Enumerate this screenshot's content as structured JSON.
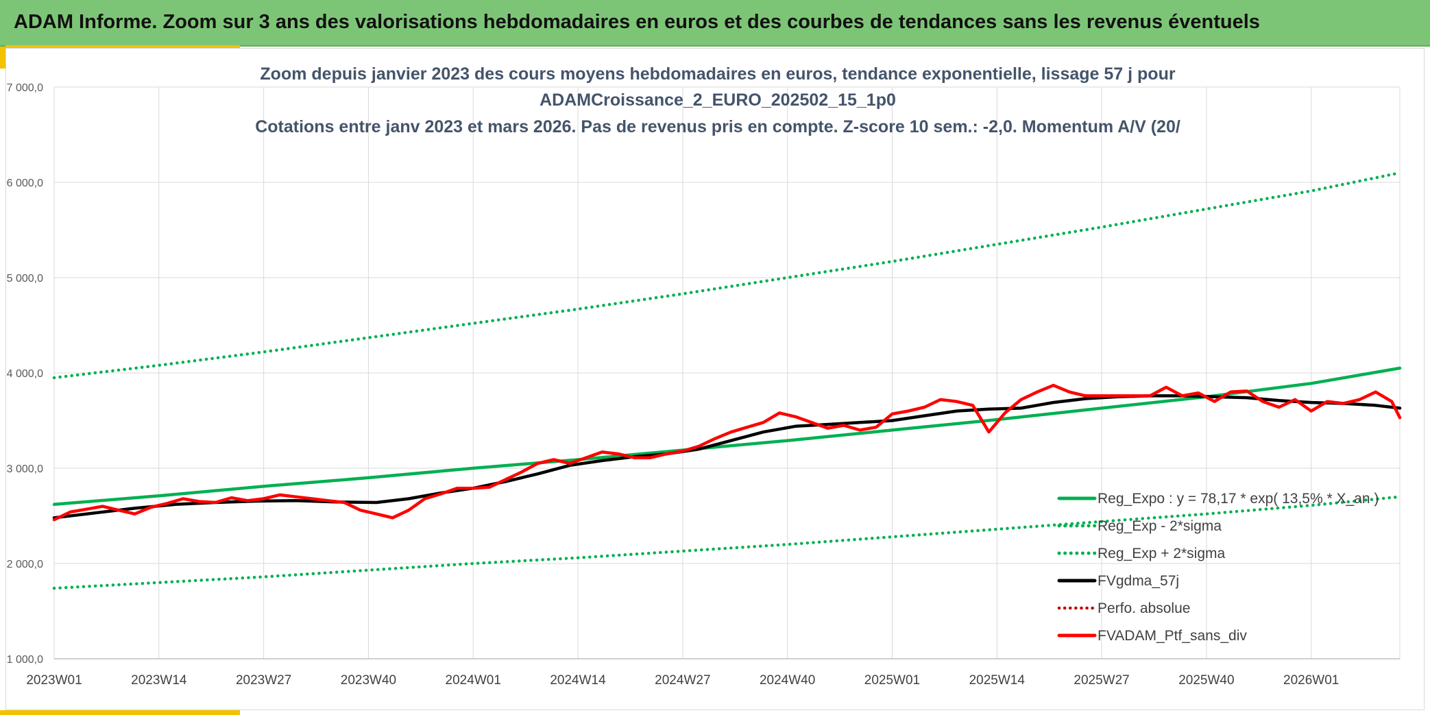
{
  "header": {
    "title": "ADAM Informe. Zoom sur 3 ans des valorisations hebdomadaires en euros et des courbes de tendances sans les revenus éventuels"
  },
  "colors": {
    "banner": "#7dc576",
    "accent": "#f2c200",
    "trend_green": "#00b050",
    "fv_black": "#000000",
    "ptf_red": "#ff0000",
    "perf_red": "#c00000",
    "grid": "#d9d9d9"
  },
  "chart_data": {
    "type": "line",
    "title_lines": [
      "Zoom depuis janvier 2023 des cours moyens hebdomadaires en euros, tendance exponentielle, lissage 57 j pour",
      "ADAMCroissance_2_EURO_202502_15_1p0",
      "Cotations entre janv 2023 et mars 2026. Pas de revenus pris en compte. Z-score 10 sem.: -2,0. Momentum A/V (20/"
    ],
    "ylim": [
      1000,
      7000
    ],
    "y_ticks": [
      1000,
      2000,
      3000,
      4000,
      5000,
      6000,
      7000
    ],
    "y_tick_labels": [
      "1 000,0",
      "2 000,0",
      "3 000,0",
      "4 000,0",
      "5 000,0",
      "6 000,0",
      "7 000,0"
    ],
    "x_range_weeks": [
      0,
      167
    ],
    "x_ticks": [
      0,
      13,
      26,
      39,
      52,
      65,
      78,
      91,
      104,
      117,
      130,
      143,
      156
    ],
    "x_tick_labels": [
      "2023W01",
      "2023W14",
      "2023W27",
      "2023W40",
      "2024W01",
      "2024W14",
      "2024W27",
      "2024W40",
      "2025W01",
      "2025W14",
      "2025W27",
      "2025W40",
      "2026W01"
    ],
    "legend_position": "bottom-right",
    "series": [
      {
        "key": "reg_expo",
        "name": "Reg_Expo : y = 78,17 * exp( 13,5% * X_an )",
        "style": "solid-green",
        "x": [
          0,
          13,
          26,
          39,
          52,
          65,
          78,
          91,
          104,
          117,
          130,
          143,
          156,
          167
        ],
        "y": [
          2620,
          2710,
          2810,
          2900,
          3000,
          3090,
          3190,
          3290,
          3400,
          3510,
          3630,
          3750,
          3890,
          4050
        ]
      },
      {
        "key": "reg_minus",
        "name": "Reg_Exp - 2*sigma",
        "style": "dotted-green",
        "x": [
          0,
          13,
          26,
          39,
          52,
          65,
          78,
          91,
          104,
          117,
          130,
          143,
          156,
          167
        ],
        "y": [
          1740,
          1800,
          1860,
          1930,
          2000,
          2060,
          2130,
          2200,
          2280,
          2360,
          2440,
          2520,
          2610,
          2700
        ]
      },
      {
        "key": "reg_plus",
        "name": "Reg_Exp + 2*sigma",
        "style": "dotted-green",
        "x": [
          0,
          13,
          26,
          39,
          52,
          65,
          78,
          91,
          104,
          117,
          130,
          143,
          156,
          167
        ],
        "y": [
          3950,
          4080,
          4220,
          4370,
          4520,
          4670,
          4830,
          5000,
          5170,
          5350,
          5530,
          5720,
          5910,
          6100
        ]
      },
      {
        "key": "fvgdma",
        "name": "FVgdma_57j",
        "style": "solid-black",
        "x": [
          0,
          5,
          10,
          15,
          20,
          25,
          30,
          35,
          40,
          44,
          48,
          52,
          56,
          60,
          64,
          68,
          72,
          76,
          80,
          84,
          88,
          92,
          96,
          100,
          104,
          108,
          112,
          116,
          120,
          124,
          128,
          132,
          136,
          140,
          144,
          148,
          152,
          156,
          160,
          164,
          167
        ],
        "y": [
          2480,
          2530,
          2580,
          2620,
          2640,
          2655,
          2660,
          2645,
          2640,
          2680,
          2740,
          2790,
          2860,
          2940,
          3030,
          3080,
          3120,
          3150,
          3200,
          3290,
          3380,
          3440,
          3460,
          3480,
          3500,
          3550,
          3600,
          3620,
          3630,
          3690,
          3730,
          3750,
          3760,
          3760,
          3750,
          3740,
          3710,
          3690,
          3680,
          3660,
          3630
        ]
      },
      {
        "key": "ptf",
        "name": "FVADAM_Ptf_sans_div",
        "style": "solid-red",
        "x": [
          0,
          2,
          4,
          6,
          8,
          10,
          12,
          14,
          16,
          18,
          20,
          22,
          24,
          26,
          28,
          30,
          32,
          34,
          36,
          38,
          40,
          41,
          42,
          44,
          46,
          48,
          50,
          52,
          54,
          56,
          58,
          60,
          62,
          64,
          66,
          68,
          70,
          72,
          74,
          76,
          78,
          80,
          82,
          84,
          86,
          88,
          90,
          92,
          94,
          96,
          98,
          100,
          102,
          104,
          106,
          108,
          110,
          112,
          114,
          116,
          118,
          120,
          122,
          124,
          126,
          128,
          130,
          132,
          134,
          136,
          138,
          140,
          142,
          144,
          146,
          148,
          150,
          152,
          154,
          156,
          158,
          160,
          162,
          164,
          166,
          167
        ],
        "y": [
          2460,
          2540,
          2570,
          2600,
          2560,
          2520,
          2590,
          2630,
          2680,
          2650,
          2640,
          2690,
          2660,
          2680,
          2720,
          2700,
          2680,
          2660,
          2640,
          2560,
          2520,
          2500,
          2480,
          2560,
          2680,
          2730,
          2790,
          2790,
          2800,
          2880,
          2960,
          3050,
          3090,
          3050,
          3110,
          3170,
          3150,
          3110,
          3110,
          3150,
          3180,
          3230,
          3310,
          3380,
          3430,
          3480,
          3580,
          3540,
          3480,
          3420,
          3450,
          3400,
          3430,
          3570,
          3600,
          3640,
          3720,
          3700,
          3660,
          3380,
          3580,
          3720,
          3800,
          3870,
          3800,
          3760,
          3760,
          3760,
          3760,
          3760,
          3850,
          3760,
          3790,
          3700,
          3800,
          3810,
          3700,
          3640,
          3720,
          3600,
          3700,
          3680,
          3720,
          3800,
          3700,
          3530
        ]
      }
    ],
    "legend": [
      {
        "label": "Reg_Expo : y = 78,17 * exp( 13,5% * X_an )",
        "style": "solid-green"
      },
      {
        "label": "Reg_Exp - 2*sigma",
        "style": "dotted-green"
      },
      {
        "label": "Reg_Exp + 2*sigma",
        "style": "dotted-green"
      },
      {
        "label": "FVgdma_57j",
        "style": "solid-black"
      },
      {
        "label": "Perfo. absolue",
        "style": "dotted-red"
      },
      {
        "label": "FVADAM_Ptf_sans_div",
        "style": "solid-red"
      }
    ]
  }
}
